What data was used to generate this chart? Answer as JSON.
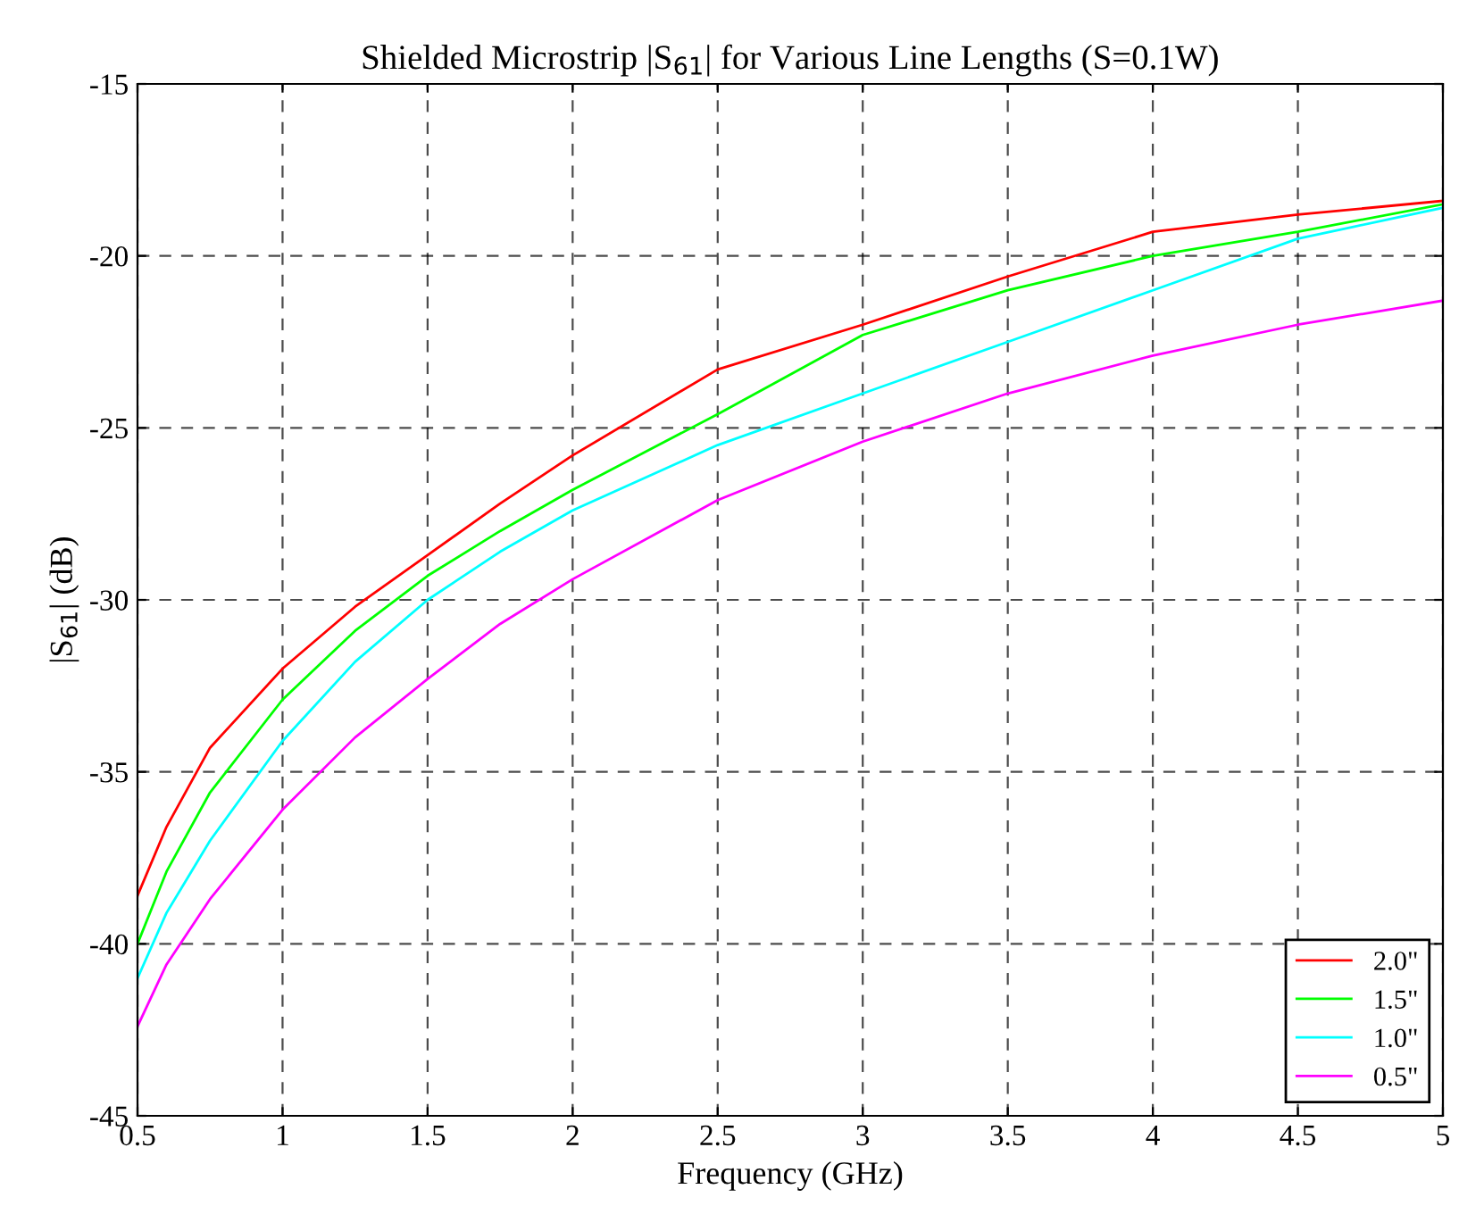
{
  "chart_data": {
    "type": "line",
    "title": "Shielded Microstrip |S$_{61}$| for Various Line Lengths (S=0.1W)",
    "xlabel": "Frequency (GHz)",
    "ylabel": "|S$_{61}$| (dB)",
    "x": [
      0.5,
      0.6,
      0.75,
      1,
      1.25,
      1.5,
      1.75,
      2,
      2.5,
      3,
      3.5,
      4,
      4.5,
      5
    ],
    "series": [
      {
        "name": "2.0\"",
        "color": "#ff0000",
        "values": [
          -38.6,
          -36.6,
          -34.3,
          -32.0,
          -30.2,
          -28.7,
          -27.2,
          -25.8,
          -23.3,
          -22.0,
          -20.6,
          -19.3,
          -18.8,
          -18.4
        ]
      },
      {
        "name": "1.5\"",
        "color": "#00ff00",
        "values": [
          -40.0,
          -37.9,
          -35.6,
          -32.9,
          -30.9,
          -29.3,
          -28.0,
          -26.8,
          -24.6,
          -22.3,
          -21.0,
          -20.0,
          -19.3,
          -18.5
        ]
      },
      {
        "name": "1.0\"",
        "color": "#00ffff",
        "values": [
          -41.0,
          -39.1,
          -37.0,
          -34.1,
          -31.8,
          -30.0,
          -28.6,
          -27.4,
          -25.5,
          -24.0,
          -22.5,
          -21.0,
          -19.5,
          -18.6
        ]
      },
      {
        "name": "0.5\"",
        "color": "#ff00ff",
        "values": [
          -42.4,
          -40.6,
          -38.7,
          -36.1,
          -34.0,
          -32.3,
          -30.7,
          -29.4,
          -27.1,
          -25.4,
          -24.0,
          -22.9,
          -22.0,
          -21.3
        ]
      }
    ],
    "xlim": [
      0.5,
      5
    ],
    "ylim": [
      -45,
      -15
    ],
    "xticks": [
      0.5,
      1,
      1.5,
      2,
      2.5,
      3,
      3.5,
      4,
      4.5,
      5
    ],
    "yticks": [
      -45,
      -40,
      -35,
      -30,
      -25,
      -20,
      -15
    ],
    "grid": true,
    "legend": "bottom right",
    "line_style": "solid"
  }
}
